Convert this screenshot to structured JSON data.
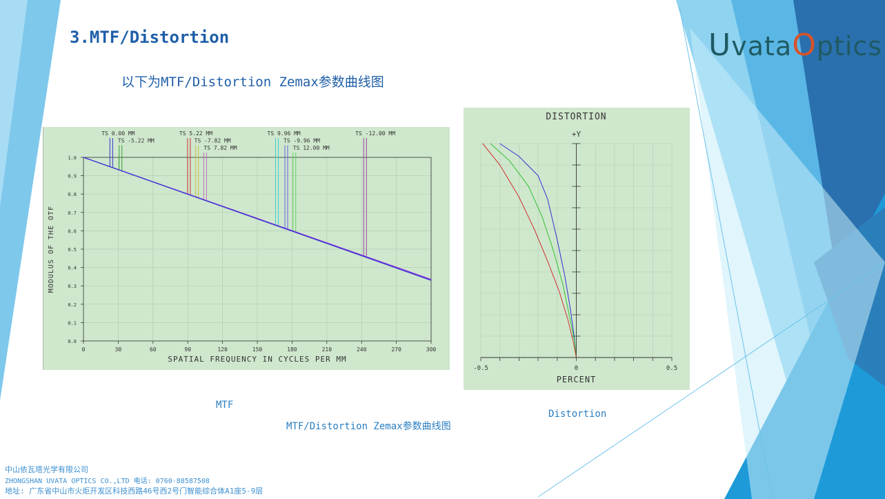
{
  "slide": {
    "title": "3.MTF/Distortion",
    "subtitle": "以下为MTF/Distortion Zemax参数曲线图",
    "logo": {
      "u": "U",
      "part1": "vata",
      "o": "O",
      "part2": "ptics"
    },
    "captions": {
      "mtf": "MTF",
      "combined": "MTF/Distortion Zemax参数曲线图",
      "distortion": "Distortion"
    },
    "footer": {
      "company_cn": "中山依瓦塔光学有限公司",
      "company_en_phone": "ZHONGSHAN UVATA OPTICS CO.,LTD    电话: 0760-88587508",
      "address": "地址: 广东省中山市火炬开发区科技西路46号西2号门智能综合体A1座5-9层"
    },
    "colors": {
      "accent": "#1f5fa8",
      "panel_bg": "#cfe7cd",
      "logo_teal": "#1f5a62",
      "logo_orange": "#d9532a"
    }
  },
  "chart_data": [
    {
      "type": "line",
      "title": "",
      "xlabel": "SPATIAL FREQUENCY IN CYCLES PER MM",
      "ylabel": "MODULUS OF THE OTF",
      "xlim": [
        0,
        300
      ],
      "ylim": [
        0,
        1.0
      ],
      "xticks": [
        "0",
        "30",
        "60",
        "90",
        "120",
        "150",
        "180",
        "210",
        "240",
        "270",
        "300"
      ],
      "yticks": [
        "0.0",
        "0.1",
        "0.2",
        "0.3",
        "0.4",
        "0.5",
        "0.6",
        "0.7",
        "0.8",
        "0.9",
        "1.0"
      ],
      "grid": true,
      "series": [
        {
          "color": "#8a2be2",
          "x": [
            0,
            300
          ],
          "y": [
            1.0,
            0.335
          ]
        },
        {
          "color": "#3a3ad0",
          "x": [
            0,
            300
          ],
          "y": [
            1.0,
            0.33
          ]
        }
      ],
      "field_labels": [
        {
          "text": "TS 0.00 MM",
          "x": 24,
          "colors": [
            "#3030d0",
            "#3030d0"
          ]
        },
        {
          "text": "TS -5.22 MM",
          "x": 32,
          "colors": [
            "#30a030",
            "#30a030"
          ]
        },
        {
          "text": "TS 5.22 MM",
          "x": 91,
          "colors": [
            "#d03030",
            "#d03030"
          ]
        },
        {
          "text": "TS -7.82 MM",
          "x": 98,
          "colors": [
            "#c8c040",
            "#c8c040"
          ]
        },
        {
          "text": "TS 7.82 MM",
          "x": 105,
          "colors": [
            "#c070c0",
            "#c070c0"
          ]
        },
        {
          "text": "TS 9.96 MM",
          "x": 167,
          "colors": [
            "#40d0d0",
            "#40d0d0"
          ]
        },
        {
          "text": "TS -9.96 MM",
          "x": 175,
          "colors": [
            "#6060e0",
            "#6060e0"
          ]
        },
        {
          "text": "TS 12.00 MM",
          "x": 182,
          "colors": [
            "#60d060",
            "#60d060"
          ]
        },
        {
          "text": "TS -12.00 MM",
          "x": 243,
          "colors": [
            "#a040a0",
            "#a040a0"
          ]
        }
      ]
    },
    {
      "type": "line",
      "title": "DISTORTION",
      "xlabel": "PERCENT",
      "ylabel": "+Y",
      "xlim": [
        -0.5,
        0.5
      ],
      "xticks": [
        "-0.5",
        "0",
        "0.5"
      ],
      "grid": true,
      "series": [
        {
          "color": "#3030d0",
          "x": [
            -0.4,
            -0.3,
            -0.2,
            -0.15,
            -0.1,
            -0.06,
            -0.03,
            -0.01,
            0
          ],
          "y": [
            1.0,
            0.94,
            0.85,
            0.74,
            0.55,
            0.38,
            0.22,
            0.09,
            0
          ]
        },
        {
          "color": "#30c030",
          "x": [
            -0.45,
            -0.35,
            -0.25,
            -0.18,
            -0.12,
            -0.07,
            -0.035,
            -0.01,
            0
          ],
          "y": [
            1.0,
            0.92,
            0.8,
            0.66,
            0.5,
            0.34,
            0.19,
            0.08,
            0
          ]
        },
        {
          "color": "#d03030",
          "x": [
            -0.49,
            -0.4,
            -0.3,
            -0.22,
            -0.15,
            -0.09,
            -0.045,
            -0.015,
            0
          ],
          "y": [
            1.0,
            0.9,
            0.75,
            0.6,
            0.45,
            0.31,
            0.18,
            0.07,
            0
          ]
        }
      ]
    }
  ]
}
